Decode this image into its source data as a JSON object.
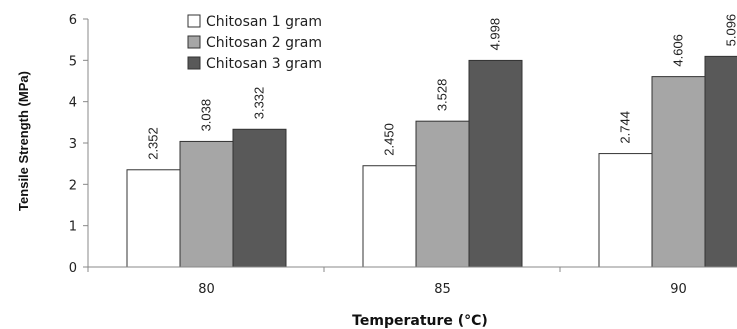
{
  "chart_data": {
    "type": "bar",
    "title": "",
    "xlabel": "Temperature (°C)",
    "ylabel": "Tensile Strength (MPa)",
    "categories": [
      "80",
      "85",
      "90"
    ],
    "ylim": [
      0,
      6
    ],
    "yticks": [
      "0",
      "1",
      "2",
      "3",
      "4",
      "5",
      "6"
    ],
    "grid": false,
    "legend_position": "top-left",
    "series": [
      {
        "name": "Chitosan 1 gram",
        "values": [
          2.352,
          2.45,
          2.744
        ],
        "labels": [
          "2.352",
          "2.450",
          "2.744"
        ],
        "color": "#ffffff"
      },
      {
        "name": "Chitosan 2 gram",
        "values": [
          3.038,
          3.528,
          4.606
        ],
        "labels": [
          "3.038",
          "3.528",
          "4.606"
        ],
        "color": "#a6a6a6"
      },
      {
        "name": "Chitosan 3 gram",
        "values": [
          3.332,
          4.998,
          5.096
        ],
        "labels": [
          "3.332",
          "4.998",
          "5.096"
        ],
        "color": "#595959"
      }
    ]
  }
}
